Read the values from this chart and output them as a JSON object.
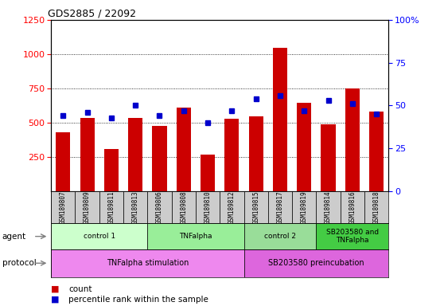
{
  "title": "GDS2885 / 22092",
  "samples": [
    "GSM189807",
    "GSM189809",
    "GSM189811",
    "GSM189813",
    "GSM189806",
    "GSM189808",
    "GSM189810",
    "GSM189812",
    "GSM189815",
    "GSM189817",
    "GSM189819",
    "GSM189814",
    "GSM189816",
    "GSM189818"
  ],
  "counts": [
    430,
    535,
    310,
    535,
    475,
    610,
    265,
    530,
    545,
    1045,
    645,
    490,
    750,
    580
  ],
  "percentile_ranks": [
    44,
    46,
    43,
    50,
    44,
    47,
    40,
    47,
    54,
    56,
    47,
    53,
    51,
    45
  ],
  "ylim_left": [
    0,
    1250
  ],
  "ylim_right": [
    0,
    100
  ],
  "yticks_left": [
    250,
    500,
    750,
    1000
  ],
  "yticks_right": [
    0,
    25,
    50,
    75,
    100
  ],
  "bar_color": "#cc0000",
  "dot_color": "#0000cc",
  "agent_groups": [
    {
      "label": "control 1",
      "start": 0,
      "end": 4,
      "color": "#ccffcc"
    },
    {
      "label": "TNFalpha",
      "start": 4,
      "end": 8,
      "color": "#99ee99"
    },
    {
      "label": "control 2",
      "start": 8,
      "end": 11,
      "color": "#99dd99"
    },
    {
      "label": "SB203580 and\nTNFalpha",
      "start": 11,
      "end": 14,
      "color": "#44cc44"
    }
  ],
  "protocol_groups": [
    {
      "label": "TNFalpha stimulation",
      "start": 0,
      "end": 8,
      "color": "#ee88ee"
    },
    {
      "label": "SB203580 preincubation",
      "start": 8,
      "end": 14,
      "color": "#dd66dd"
    }
  ],
  "sample_bg_color": "#cccccc",
  "legend_count_color": "#cc0000",
  "legend_pct_color": "#0000cc"
}
